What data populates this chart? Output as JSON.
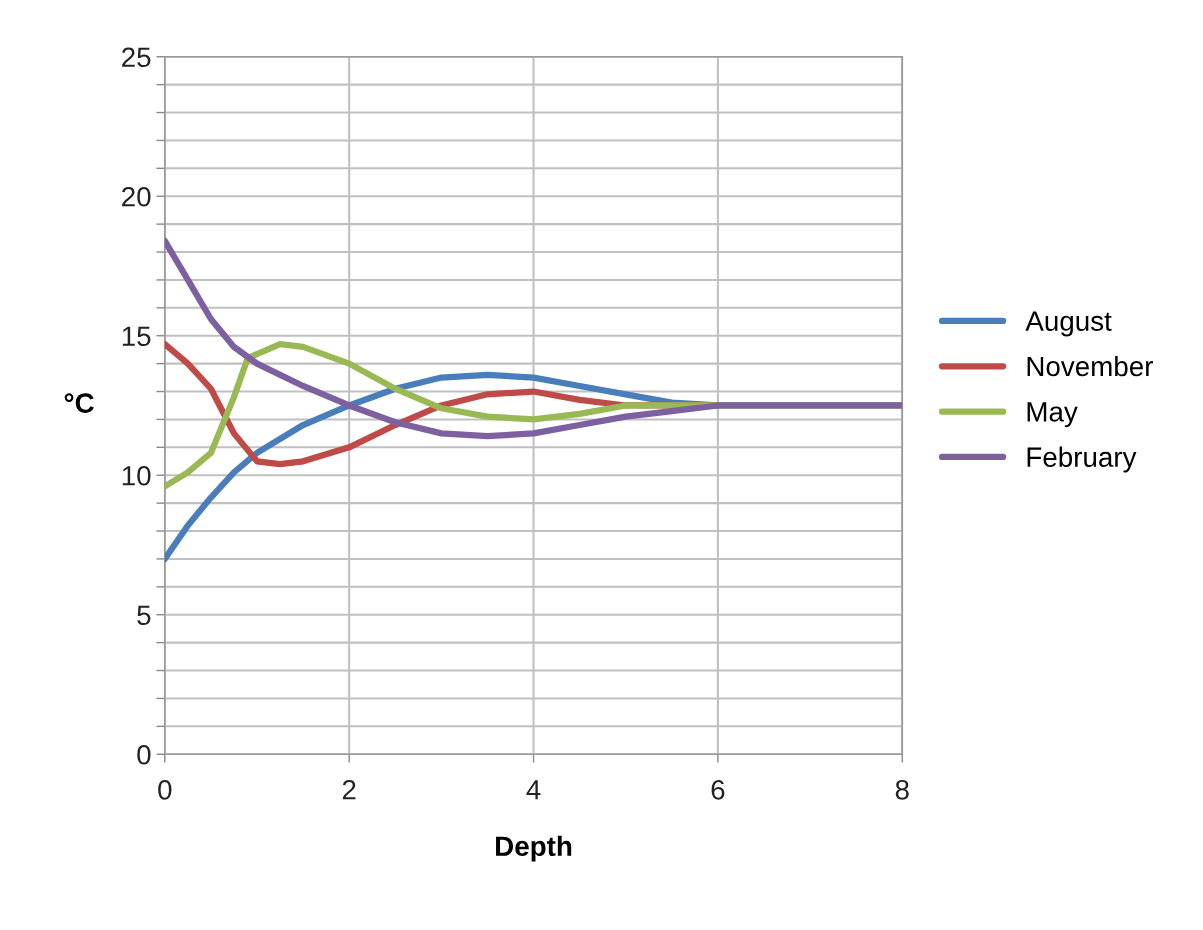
{
  "chart_data": {
    "type": "line",
    "xlabel": "Depth",
    "ylabel": "°C",
    "xlim": [
      0,
      8
    ],
    "xticks": [
      0,
      2,
      4,
      6,
      8
    ],
    "ylim": [
      0,
      25
    ],
    "yticks": [
      0,
      {
        "value": 1,
        "label": null
      },
      {
        "value": 2,
        "label": null
      },
      {
        "value": 3,
        "label": null
      },
      {
        "value": 4,
        "label": null
      },
      5,
      {
        "value": 6,
        "label": null
      },
      {
        "value": 7,
        "label": null
      },
      {
        "value": 8,
        "label": null
      },
      {
        "value": 9,
        "label": null
      },
      10,
      {
        "value": 11,
        "label": null
      },
      {
        "value": 12,
        "label": null
      },
      {
        "value": 13,
        "label": null
      },
      {
        "value": 14,
        "label": null
      },
      15,
      {
        "value": 16,
        "label": null
      },
      {
        "value": 17,
        "label": null
      },
      {
        "value": 18,
        "label": null
      },
      {
        "value": 19,
        "label": null
      },
      20,
      {
        "value": 21,
        "label": null
      },
      {
        "value": 22,
        "label": null
      },
      {
        "value": 23,
        "label": null
      },
      {
        "value": 24,
        "label": null
      },
      25
    ],
    "grid": true,
    "legend": "right",
    "marker": "none",
    "line_style": "solid",
    "series": [
      {
        "name": "August",
        "color": "#4a7ebb",
        "x": [
          0,
          0.25,
          0.5,
          0.75,
          1,
          1.5,
          2,
          2.5,
          3,
          3.5,
          4,
          4.5,
          5,
          5.5,
          6,
          7,
          8
        ],
        "values": [
          7,
          8.2,
          9.2,
          10.1,
          10.8,
          11.8,
          12.5,
          13.1,
          13.5,
          13.6,
          13.5,
          13.2,
          12.9,
          12.6,
          12.5,
          12.5,
          12.5
        ]
      },
      {
        "name": "November",
        "color": "#be4b48",
        "x": [
          0,
          0.25,
          0.5,
          0.75,
          1,
          1.25,
          1.5,
          2,
          2.5,
          3,
          3.5,
          4,
          4.5,
          5,
          6
        ],
        "values": [
          14.7,
          14,
          13.1,
          11.5,
          10.5,
          10.4,
          10.5,
          11,
          11.8,
          12.5,
          12.9,
          13,
          12.7,
          12.5,
          12.5
        ]
      },
      {
        "name": "May",
        "color": "#98b954",
        "x": [
          0,
          0.25,
          0.5,
          0.75,
          0.9,
          1.25,
          1.5,
          2,
          2.5,
          3,
          3.5,
          4,
          4.5,
          5,
          6,
          7,
          8
        ],
        "values": [
          9.6,
          10.1,
          10.8,
          12.8,
          14.2,
          14.7,
          14.6,
          14,
          13.1,
          12.4,
          12.1,
          12,
          12.2,
          12.5,
          12.5,
          12.5,
          12.5
        ]
      },
      {
        "name": "February",
        "color": "#7d60a0",
        "x": [
          0,
          0.25,
          0.5,
          0.75,
          1,
          1.5,
          2,
          2.5,
          3,
          3.5,
          4,
          4.5,
          5,
          5.5,
          6,
          6.5,
          7,
          8
        ],
        "values": [
          18.4,
          17,
          15.6,
          14.6,
          14,
          13.2,
          12.5,
          11.9,
          11.5,
          11.4,
          11.5,
          11.8,
          12.1,
          12.3,
          12.5,
          12.5,
          12.5,
          12.5
        ]
      }
    ]
  }
}
